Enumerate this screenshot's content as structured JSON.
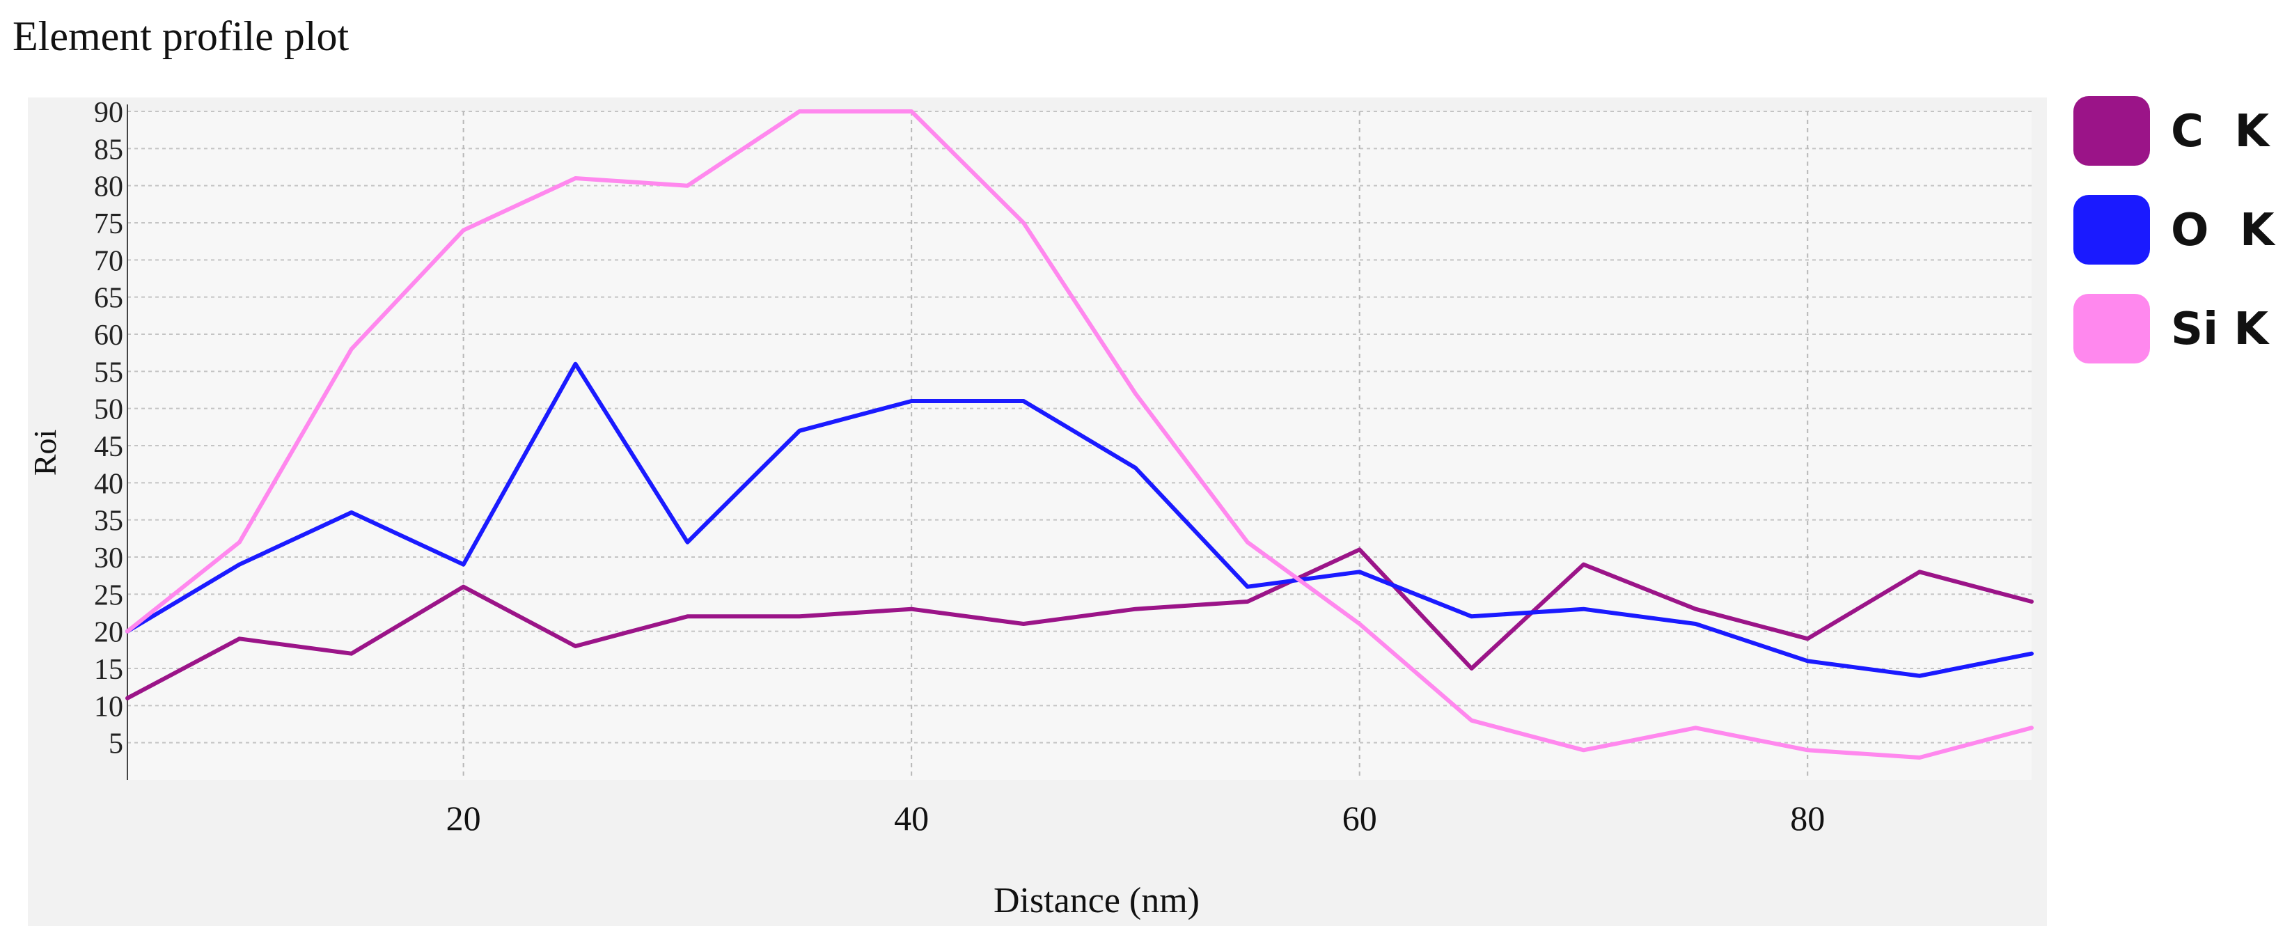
{
  "chart_data": {
    "type": "line",
    "title": "Element profile plot",
    "xlabel": "Distance (nm)",
    "ylabel": "Roi",
    "xlim": [
      5,
      90
    ],
    "ylim": [
      0,
      90
    ],
    "x_ticks": [
      20,
      40,
      60,
      80
    ],
    "y_ticks": [
      5,
      10,
      15,
      20,
      25,
      30,
      35,
      40,
      45,
      50,
      55,
      60,
      65,
      70,
      75,
      80,
      85,
      90
    ],
    "grid": true,
    "legend_position": "right",
    "x": [
      5,
      10,
      15,
      20,
      25,
      30,
      35,
      40,
      45,
      50,
      55,
      60,
      65,
      70,
      75,
      80,
      85,
      90
    ],
    "series": [
      {
        "name": "C  K",
        "color": "#9b1488",
        "values": [
          11,
          19,
          17,
          26,
          18,
          22,
          22,
          23,
          21,
          23,
          24,
          31,
          15,
          29,
          23,
          19,
          28,
          24
        ]
      },
      {
        "name": "O  K",
        "color": "#1a1aff",
        "values": [
          20,
          29,
          36,
          29,
          56,
          32,
          47,
          51,
          51,
          42,
          26,
          28,
          22,
          23,
          21,
          16,
          14,
          17
        ]
      },
      {
        "name": "Si K",
        "color": "#ff88ee",
        "values": [
          20,
          32,
          58,
          74,
          81,
          80,
          90,
          90,
          75,
          52,
          32,
          21,
          8,
          4,
          7,
          4,
          3,
          7
        ]
      }
    ]
  }
}
